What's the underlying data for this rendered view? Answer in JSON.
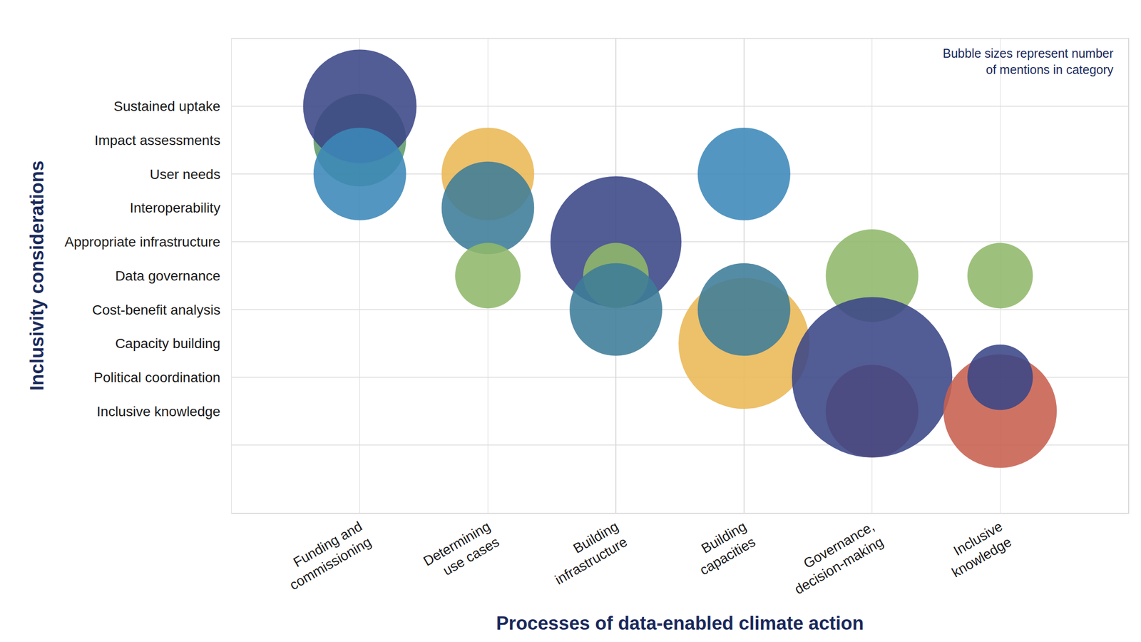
{
  "chart_data": {
    "type": "bubble",
    "x_label": "Processes of data-enabled climate action",
    "y_label": "Inclusivity considerations",
    "annotations": [
      "Bubble sizes represent number of mentions in category"
    ],
    "categories": [
      "Funding and commissioning",
      "Determining use cases",
      "Building infrastructure",
      "Building capacities",
      "Governance, decision-making",
      "Inclusive knowledge"
    ],
    "y_categories": [
      "Sustained uptake",
      "Impact assessments",
      "User needs",
      "Interoperability",
      "Appropriate infrastructure",
      "Data governance",
      "Cost-benefit analysis",
      "Capacity building",
      "Political coordination",
      "Inclusive knowledge"
    ],
    "x": [
      "Funding and commissioning",
      "Funding and commissioning",
      "Funding and commissioning",
      "Determining use cases",
      "Determining use cases",
      "Determining use cases",
      "Building infrastructure",
      "Building infrastructure",
      "Building infrastructure",
      "Building capacities",
      "Building capacities",
      "Building capacities",
      "Governance, decision-making",
      "Governance, decision-making",
      "Governance, decision-making",
      "Inclusive knowledge",
      "Inclusive knowledge",
      "Inclusive knowledge"
    ],
    "y": [
      "Impact assessments",
      "Sustained uptake",
      "User needs",
      "User needs",
      "Interoperability",
      "Data governance",
      "Appropriate infrastructure",
      "Data governance",
      "Cost-benefit analysis",
      "User needs",
      "Capacity building",
      "Cost-benefit analysis",
      "Data governance",
      "Inclusive knowledge",
      "Political coordination",
      "Data governance",
      "Inclusive knowledge",
      "Political coordination"
    ],
    "sizes": [
      2,
      3,
      2,
      2,
      2,
      1,
      4,
      1,
      2,
      2,
      4,
      2,
      2,
      2,
      6,
      1,
      3,
      1
    ],
    "colors": [
      "#5f9a6c",
      "#3a4586",
      "#3b88b8",
      "#ebb755",
      "#3e7c99",
      "#8fb86a",
      "#3a4586",
      "#8fb86a",
      "#3e7c99",
      "#3b88b8",
      "#ebb755",
      "#3e7c99",
      "#8fb86a",
      "#c7604e",
      "#3a4586",
      "#8fb86a",
      "#c7604e",
      "#3a4586"
    ],
    "grid": true
  }
}
